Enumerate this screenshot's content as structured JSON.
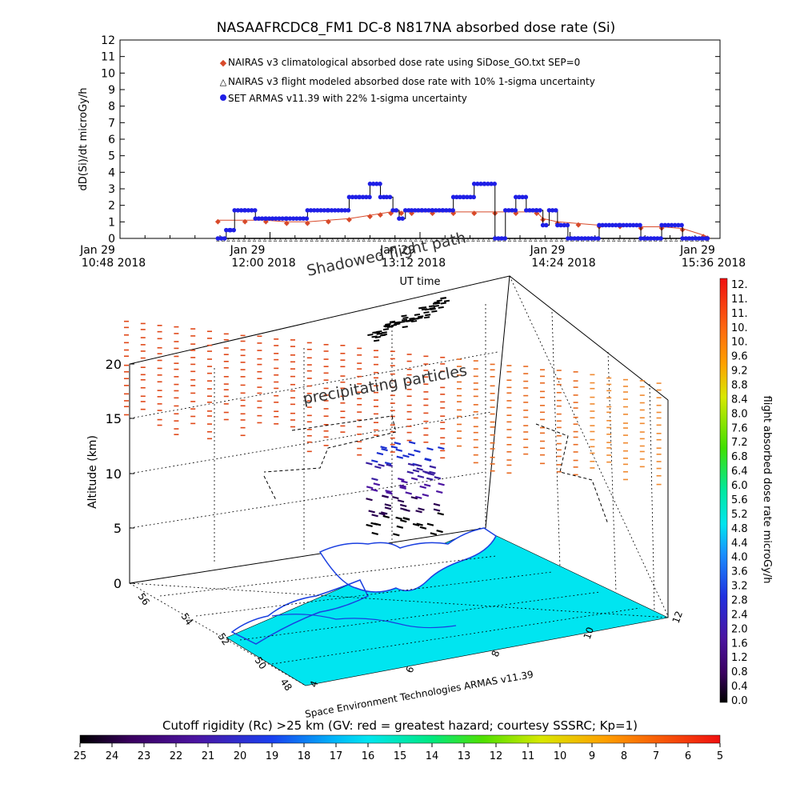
{
  "title": "NASAAFRCDC8_FM1 DC-8    N817NA absorbed dose rate (Si)",
  "colors": {
    "nairas_clim": "#d84a2a",
    "nairas_flight": "#000000",
    "armas": "#1f1fe6",
    "ocean": "#00e5f0",
    "coast": "#1a3fe0",
    "rigidity_red": "#e62a1a"
  },
  "chart_data": [
    {
      "type": "line",
      "title": "NASAAFRCDC8_FM1 DC-8    N817NA absorbed dose rate (Si)",
      "ylabel": "dD(Si)/dt microGy/h",
      "xlabel": "UT time",
      "ylim": [
        0,
        12
      ],
      "yticks": [
        "0",
        "1",
        "2",
        "3",
        "4",
        "5",
        "6",
        "7",
        "8",
        "9",
        "10",
        "11",
        "12"
      ],
      "xticks": [
        {
          "line1": "Jan 29",
          "line2": "10:48 2018"
        },
        {
          "line1": "Jan 29",
          "line2": "12:00 2018"
        },
        {
          "line1": "Jan 29",
          "line2": "13:12 2018"
        },
        {
          "line1": "Jan 29",
          "line2": "14:24 2018"
        },
        {
          "line1": "Jan 29",
          "line2": "15:36 2018"
        }
      ],
      "x_unit": "minutes after 10:48 UT",
      "legend": [
        "NAIRAS v3 climatological absorbed dose rate using SiDose_GO.txt SEP=0",
        "NAIRAS v3 flight modeled absorbed dose rate with 10% 1-sigma uncertainty",
        "SET ARMAS v11.39 with 22% 1-sigma uncertainty"
      ],
      "series": [
        {
          "name": "NAIRAS v3 climatological absorbed dose rate using SiDose_GO.txt SEP=0",
          "x": [
            47,
            60,
            70,
            80,
            90,
            100,
            110,
            120,
            125,
            130,
            135,
            140,
            150,
            160,
            170,
            180,
            190,
            200,
            203,
            210,
            220,
            230,
            240,
            250,
            260,
            270,
            280,
            282
          ],
          "y": [
            1.1,
            1.1,
            1.1,
            1.0,
            1.0,
            1.1,
            1.2,
            1.4,
            1.5,
            1.6,
            1.6,
            1.6,
            1.6,
            1.6,
            1.6,
            1.6,
            1.6,
            1.6,
            1.2,
            1.0,
            0.9,
            0.8,
            0.8,
            0.7,
            0.7,
            0.6,
            0.2,
            0.1
          ]
        },
        {
          "name": "NAIRAS v3 flight modeled absorbed dose rate with 10% 1-sigma uncertainty",
          "x": [
            47,
            282
          ],
          "y": [
            0.0,
            0.0
          ]
        },
        {
          "name": "SET ARMAS v11.39 with 22% 1-sigma uncertainty",
          "x": [
            47,
            51,
            53,
            55,
            60,
            65,
            70,
            80,
            90,
            100,
            110,
            115,
            120,
            125,
            128,
            131,
            134,
            137,
            140,
            145,
            150,
            155,
            160,
            165,
            170,
            175,
            180,
            185,
            190,
            195,
            200,
            203,
            206,
            210,
            215,
            220,
            230,
            240,
            250,
            260,
            270,
            282
          ],
          "y": [
            0,
            0.5,
            0.5,
            1.7,
            1.7,
            1.2,
            1.2,
            1.2,
            1.7,
            1.7,
            2.5,
            2.5,
            3.3,
            2.5,
            2.5,
            1.7,
            1.2,
            1.7,
            1.7,
            1.7,
            1.7,
            1.7,
            2.5,
            2.5,
            3.3,
            3.3,
            0,
            1.7,
            2.5,
            1.7,
            1.7,
            0.8,
            1.7,
            0.8,
            0,
            0,
            0.8,
            0.8,
            0,
            0.8,
            0,
            0
          ]
        }
      ]
    },
    {
      "type": "scatter",
      "subtype": "3d-flight-track",
      "zlabel": "Altitude (km)",
      "zticks": [
        "0",
        "5",
        "10",
        "15",
        "20"
      ],
      "latitude_ticks": [
        "48",
        "50",
        "52",
        "54",
        "56"
      ],
      "longitude_ticks": [
        "4",
        "6",
        "8",
        "10",
        "12"
      ],
      "annotations": [
        "Shadowed flight path",
        "precipitating particles"
      ],
      "credit": "Space Environment Technologies ARMAS v11.39"
    }
  ],
  "colorbar_right": {
    "label": "flight absorbed dose rate microGy/h",
    "ticks": [
      "12.",
      "11.",
      "11.",
      "10.",
      "10.",
      "9.6",
      "9.2",
      "8.8",
      "8.4",
      "8.0",
      "7.6",
      "7.2",
      "6.8",
      "6.4",
      "6.0",
      "5.6",
      "5.2",
      "4.8",
      "4.4",
      "4.0",
      "3.6",
      "3.2",
      "2.8",
      "2.4",
      "2.0",
      "1.6",
      "1.2",
      "0.8",
      "0.4",
      "0.0"
    ]
  },
  "colorbar_bottom": {
    "label": "Cutoff rigidity (Rc) >25 km (GV: red = greatest hazard; courtesy SSSRC; Kp=1)",
    "ticks": [
      "25",
      "24",
      "23",
      "22",
      "21",
      "20",
      "19",
      "18",
      "17",
      "16",
      "15",
      "14",
      "13",
      "12",
      "11",
      "10",
      "9",
      "8",
      "7",
      "6",
      "5"
    ]
  }
}
